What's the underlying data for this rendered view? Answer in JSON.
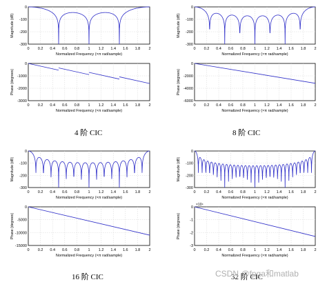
{
  "captions": [
    "4 阶 CIC",
    "8 阶 CIC",
    "16 阶 CIC",
    "32 阶 CIC"
  ],
  "watermark": "CSDN @fpga和matlab",
  "colors": {
    "curve": "#2d2dc8",
    "axis": "#000000",
    "grid": "#d6d6d6",
    "background": "#ffffff"
  },
  "chart_data": [
    {
      "type": "line",
      "panel": "magnitude",
      "order": 4,
      "xlabel": "Normalized Frequency  (×π rad/sample)",
      "ylabel": "Magnitude (dB)",
      "xlim": [
        0,
        2
      ],
      "ylim": [
        -300,
        0
      ],
      "xticks": [
        "0",
        "0.2",
        "0.4",
        "0.6",
        "0.8",
        "1",
        "1.2",
        "1.4",
        "1.6",
        "1.8",
        "2"
      ],
      "yticks": [
        "0",
        "-100",
        "-200",
        "-300"
      ],
      "grid": true,
      "series": [
        {
          "values": [
            0,
            -60,
            -200,
            -60,
            -30,
            -60,
            -200,
            -60,
            -30,
            -60,
            -200,
            -60,
            0
          ],
          "x": [
            0,
            0.35,
            0.5,
            0.65,
            0.75,
            0.85,
            1.0,
            1.15,
            1.25,
            1.35,
            1.5,
            1.65,
            2.0
          ]
        }
      ]
    },
    {
      "type": "line",
      "panel": "phase",
      "order": 4,
      "xlabel": "Normalized Frequency  (×π rad/sample)",
      "ylabel": "Phase (degrees)",
      "xlim": [
        0,
        2
      ],
      "ylim": [
        -3000,
        0
      ],
      "xticks": [
        "0",
        "0.2",
        "0.4",
        "0.6",
        "0.8",
        "1",
        "1.2",
        "1.4",
        "1.6",
        "1.8",
        "2"
      ],
      "yticks": [
        "0",
        "-1000",
        "-2000",
        "-3000"
      ],
      "grid": true,
      "series": [
        {
          "segments": [
            [
              [
                0,
                0
              ],
              [
                0.5,
                -540
              ]
            ],
            [
              [
                0.5,
                -360
              ],
              [
                1.0,
                -900
              ]
            ],
            [
              [
                1.0,
                -720
              ],
              [
                1.5,
                -1260
              ]
            ],
            [
              [
                1.5,
                -1080
              ],
              [
                2.0,
                -1620
              ]
            ]
          ]
        }
      ]
    },
    {
      "type": "line",
      "panel": "magnitude",
      "order": 8,
      "xlabel": "Normalized Frequency  (×π rad/sample)",
      "ylabel": "Magnitude (dB)",
      "xlim": [
        0,
        2
      ],
      "ylim": [
        -300,
        0
      ],
      "xticks": [
        "0",
        "0.2",
        "0.4",
        "0.6",
        "0.8",
        "1",
        "1.2",
        "1.4",
        "1.6",
        "1.8",
        "2"
      ],
      "yticks": [
        "0",
        "-100",
        "-200",
        "-300"
      ],
      "grid": true,
      "series": [
        {
          "values": [
            0,
            -170,
            -70,
            -170,
            -70,
            -170,
            -70,
            -170,
            -70,
            -170,
            -70,
            -170,
            -70,
            -170,
            -70,
            -170,
            0
          ],
          "x": [
            0,
            0.25,
            0.375,
            0.5,
            0.625,
            0.75,
            0.875,
            1.0,
            1.125,
            1.25,
            1.375,
            1.5,
            1.625,
            1.75,
            1.8,
            1.75,
            2.0
          ]
        }
      ]
    },
    {
      "type": "line",
      "panel": "phase",
      "order": 8,
      "xlabel": "Normalized Frequency  (×π rad/sample)",
      "ylabel": "Phase (degrees)",
      "xlim": [
        0,
        2
      ],
      "ylim": [
        -6000,
        0
      ],
      "xticks": [
        "0",
        "0.2",
        "0.4",
        "0.6",
        "0.8",
        "1",
        "1.2",
        "1.4",
        "1.6",
        "1.8",
        "2"
      ],
      "yticks": [
        "0",
        "-2000",
        "-4000",
        "-6000"
      ],
      "grid": true,
      "series": [
        {
          "segments": [
            [
              [
                0,
                0
              ],
              [
                2.0,
                -3200
              ]
            ]
          ]
        }
      ]
    },
    {
      "type": "line",
      "panel": "magnitude",
      "order": 16,
      "xlabel": "Normalized Frequency  (×π rad/sample)",
      "ylabel": "Magnitude (dB)",
      "xlim": [
        0,
        2
      ],
      "ylim": [
        -300,
        0
      ],
      "xticks": [
        "0",
        "0.2",
        "0.4",
        "0.6",
        "0.8",
        "1",
        "1.2",
        "1.4",
        "1.6",
        "1.8",
        "2"
      ],
      "yticks": [
        "0",
        "-100",
        "-200",
        "-300"
      ],
      "grid": true,
      "series": [
        {
          "values": [
            0,
            -160,
            -110
          ],
          "x": [
            0,
            0.125,
            1.0
          ]
        }
      ]
    },
    {
      "type": "line",
      "panel": "phase",
      "order": 16,
      "xlabel": "Normalized Frequency  (×π rad/sample)",
      "ylabel": "Phase (degrees)",
      "xlim": [
        0,
        2
      ],
      "ylim": [
        -15000,
        0
      ],
      "xticks": [
        "0",
        "0.2",
        "0.4",
        "0.6",
        "0.8",
        "1",
        "1.2",
        "1.4",
        "1.6",
        "1.8",
        "2"
      ],
      "yticks": [
        "0",
        "-5000",
        "-10000",
        "-15000"
      ],
      "grid": true,
      "series": [
        {
          "segments": [
            [
              [
                0,
                0
              ],
              [
                2.0,
                -11000
              ]
            ]
          ]
        }
      ]
    },
    {
      "type": "line",
      "panel": "magnitude",
      "order": 32,
      "xlabel": "Normalized Frequency  (×π rad/sample)",
      "ylabel": "Magnitude (dB)",
      "xlim": [
        0,
        2
      ],
      "ylim": [
        -300,
        0
      ],
      "xticks": [
        "0",
        "0.2",
        "0.4",
        "0.6",
        "0.8",
        "1",
        "1.2",
        "1.4",
        "1.6",
        "1.8",
        "2"
      ],
      "yticks": [
        "0",
        "-100",
        "-200",
        "-300"
      ],
      "grid": true,
      "series": [
        {
          "values": [
            0,
            -160,
            -140
          ],
          "x": [
            0,
            0.0625,
            1.0
          ]
        }
      ]
    },
    {
      "type": "line",
      "panel": "phase",
      "order": 32,
      "xlabel": "Normalized Frequency  (×π rad/sample)",
      "ylabel": "Phase (degrees)",
      "xlim": [
        0,
        2
      ],
      "ylim": [
        -30000,
        0
      ],
      "yexponent": "×10⁴",
      "xticks": [
        "0",
        "0.2",
        "0.4",
        "0.6",
        "0.8",
        "1",
        "1.2",
        "1.4",
        "1.6",
        "1.8",
        "2"
      ],
      "yticks": [
        "0",
        "-1",
        "-2",
        "-3"
      ],
      "grid": true,
      "series": [
        {
          "segments": [
            [
              [
                0,
                0
              ],
              [
                2.0,
                -23000
              ]
            ]
          ]
        }
      ]
    }
  ]
}
